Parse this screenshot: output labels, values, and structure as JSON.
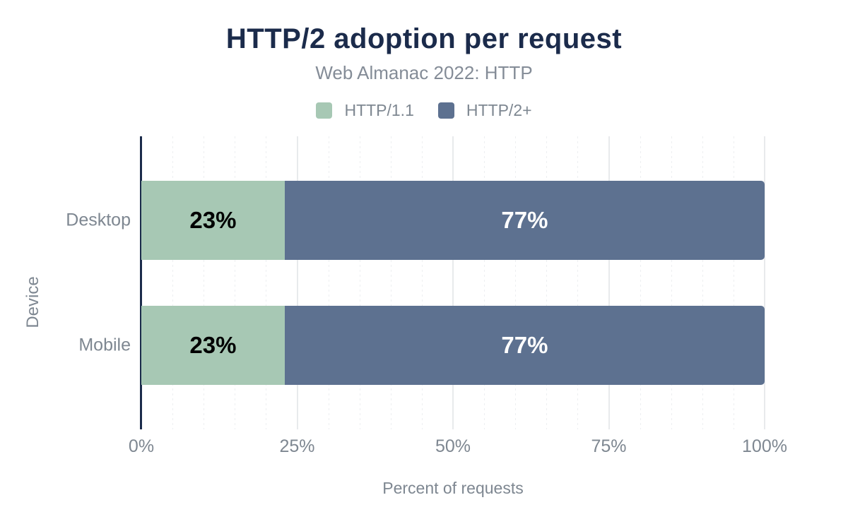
{
  "chart_data": {
    "type": "bar",
    "orientation": "horizontal",
    "stacked": true,
    "title": "HTTP/2 adoption per request",
    "subtitle": "Web Almanac 2022: HTTP",
    "categories": [
      "Desktop",
      "Mobile"
    ],
    "series": [
      {
        "name": "HTTP/1.1",
        "color": "#a7c8b4",
        "values": [
          23,
          23
        ],
        "data_labels": [
          "23%",
          "23%"
        ],
        "data_label_color": "#000000"
      },
      {
        "name": "HTTP/2+",
        "color": "#5d7190",
        "values": [
          77,
          77
        ],
        "data_labels": [
          "77%",
          "77%"
        ],
        "data_label_color": "#ffffff"
      }
    ],
    "xlabel": "Percent of requests",
    "ylabel": "Device",
    "xlim": [
      0,
      100
    ],
    "x_ticks": [
      {
        "value": 0,
        "label": "0%"
      },
      {
        "value": 25,
        "label": "25%"
      },
      {
        "value": 50,
        "label": "50%"
      },
      {
        "value": 75,
        "label": "75%"
      },
      {
        "value": 100,
        "label": "100%"
      }
    ],
    "grid": {
      "minor_every": 5,
      "major_every": 25
    },
    "legend_position": "top"
  },
  "style_colors": {
    "background": "#ffffff",
    "title_text": "#1b2b4b",
    "subtitle_text": "#848c97",
    "legend_text": "#7e8791",
    "axis_line": "#1b2b4b",
    "tick_text": "#7e8791",
    "category_text": "#7e8791",
    "axis_title_text": "#7e8791",
    "major_grid": "#e8eaec",
    "minor_grid": "#edeff1"
  }
}
